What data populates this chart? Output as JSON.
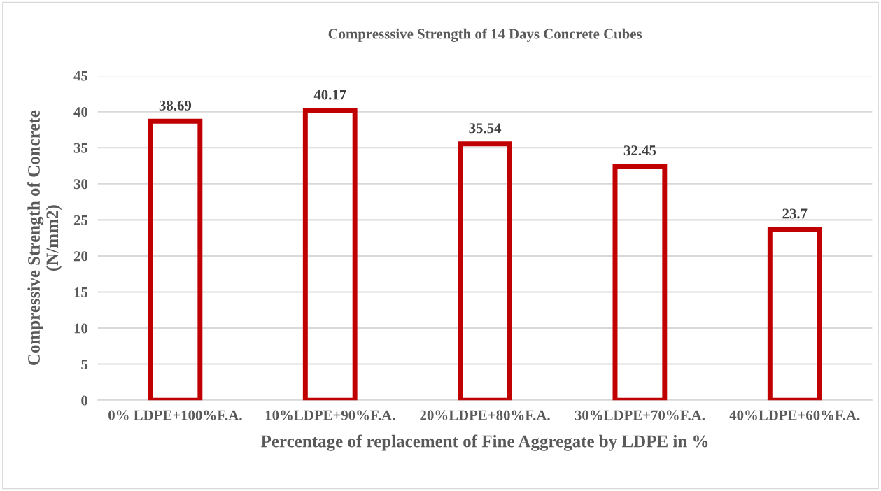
{
  "chart_data": {
    "type": "bar",
    "title": "Compresssive Strength of 14 Days Concrete Cubes",
    "xlabel": "Percentage of replacement of Fine Aggregate by LDPE in %",
    "ylabel": "Compressive Strength of Concrete\n(N/mm2)",
    "categories": [
      "0% LDPE+100%F.A.",
      "10%LDPE+90%F.A.",
      "20%LDPE+80%F.A.",
      "30%LDPE+70%F.A.",
      "40%LDPE+60%F.A."
    ],
    "values": [
      38.69,
      40.17,
      35.54,
      32.45,
      23.7
    ],
    "color": "#c00000",
    "ylim": [
      0,
      45
    ],
    "yticks": [
      0,
      5,
      10,
      15,
      20,
      25,
      30,
      35,
      40,
      45
    ],
    "grid": "y",
    "data_labels": true
  }
}
